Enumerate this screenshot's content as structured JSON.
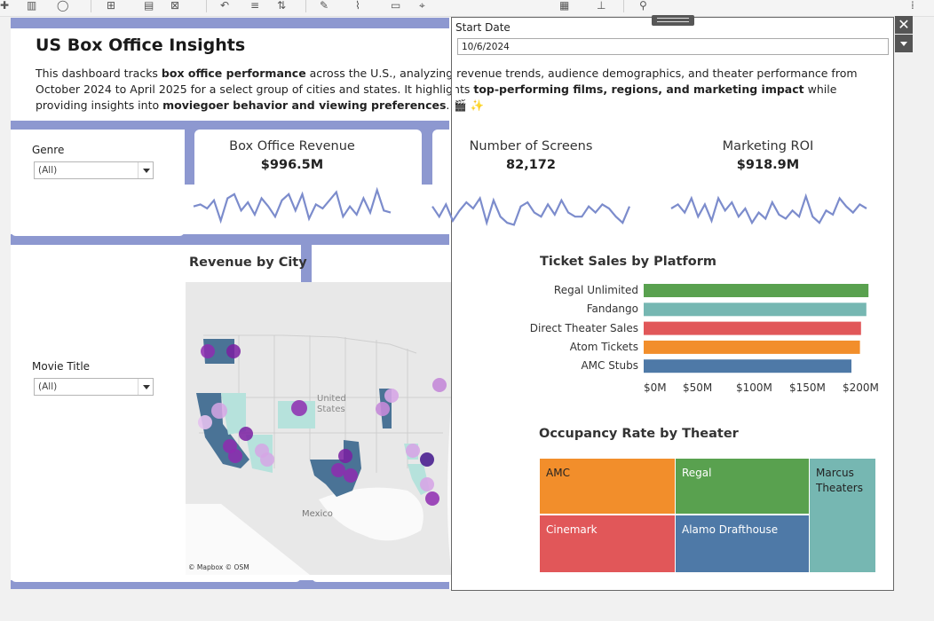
{
  "colors": {
    "accent_band": "#8d98d0",
    "sparkline": "#7c8ccc",
    "green": "#59a14f",
    "teal": "#76b7b2",
    "red": "#e15759",
    "orange": "#f28e2b",
    "blue": "#4e79a7",
    "map_state_dark": "#4a7396",
    "map_state_light": "#b6e2dc",
    "map_dot": "#7a1fa2"
  },
  "toolbar": {
    "icons": [
      "plus-icon",
      "bars-icon",
      "circle-icon",
      "add-sheet-icon",
      "trash-icon",
      "clear-icon",
      "undo-icon",
      "redo-icon",
      "sort-icon",
      "pen-icon",
      "link-icon",
      "swap-icon",
      "pin-icon",
      "chart-icon",
      "axis-icon",
      "share-icon"
    ]
  },
  "dashboard": {
    "title": "US Box Office Insights",
    "description": {
      "p1": "This dashboard tracks ",
      "b1": "box office performance",
      "p2": " across the U.S., analyzing revenue trends, audience demographics, and theater performance from October 2024 to April 2025 for a select group of cities and states. It highlights ",
      "b2": "top-performing films, regions, and marketing impact",
      "p3": " while providing insights into ",
      "b3": "moviegoer behavior and viewing preferences",
      "p4": ". 🎬 ✨"
    },
    "filters": {
      "genre": {
        "label": "Genre",
        "value": "(All)"
      },
      "movie_title": {
        "label": "Movie Title",
        "value": "(All)"
      }
    },
    "kpis": [
      {
        "title": "Box Office Revenue",
        "value": "$996.5M",
        "spark": [
          0.55,
          0.6,
          0.5,
          0.7,
          0.2,
          0.75,
          0.85,
          0.45,
          0.65,
          0.35,
          0.75,
          0.55,
          0.3,
          0.7,
          0.85,
          0.45,
          0.85,
          0.25,
          0.6,
          0.5,
          0.7,
          0.9,
          0.3,
          0.55,
          0.35,
          0.75,
          0.4,
          0.95,
          0.45,
          0.4
        ]
      },
      {
        "title": "Number of Screens",
        "value": "82,172",
        "spark": [
          0.55,
          0.3,
          0.6,
          0.2,
          0.45,
          0.65,
          0.5,
          0.75,
          0.15,
          0.7,
          0.3,
          0.15,
          0.1,
          0.55,
          0.65,
          0.4,
          0.3,
          0.6,
          0.35,
          0.7,
          0.4,
          0.3,
          0.3,
          0.55,
          0.4,
          0.6,
          0.5,
          0.3,
          0.15,
          0.55
        ]
      },
      {
        "title": "Marketing ROI",
        "value": "$918.9M",
        "spark": [
          0.5,
          0.6,
          0.4,
          0.75,
          0.3,
          0.6,
          0.2,
          0.75,
          0.45,
          0.65,
          0.3,
          0.5,
          0.15,
          0.4,
          0.25,
          0.65,
          0.35,
          0.25,
          0.45,
          0.3,
          0.8,
          0.3,
          0.15,
          0.45,
          0.35,
          0.75,
          0.55,
          0.4,
          0.6,
          0.5
        ]
      }
    ],
    "map": {
      "title": "Revenue by City",
      "credit": "© Mapbox © OSM",
      "label_us": "United\nStates",
      "label_us_1": "United",
      "label_us_2": "States",
      "label_mexico": "Mexico"
    }
  },
  "overlay": {
    "start_date": {
      "label": "Start Date",
      "value": "10/6/2024"
    },
    "close_label": "✕"
  },
  "chart_data": [
    {
      "type": "bar",
      "title": "Ticket Sales by Platform",
      "categories": [
        "Regal Unlimited",
        "Fandango",
        "Direct Theater Sales",
        "Atom Tickets",
        "AMC Stubs"
      ],
      "values": [
        211,
        209,
        204,
        203,
        195
      ],
      "xlim": [
        0,
        220
      ],
      "tick_labels": [
        "$0M",
        "$50M",
        "$100M",
        "$150M",
        "$200M"
      ],
      "ticks": [
        0,
        50,
        100,
        150,
        200
      ],
      "bar_colors": [
        "#59a14f",
        "#76b7b2",
        "#e15759",
        "#f28e2b",
        "#4e79a7"
      ]
    },
    {
      "type": "treemap",
      "title": "Occupancy Rate by Theater",
      "cells": [
        {
          "label": "AMC",
          "color": "#f28e2b",
          "text_color": "#222"
        },
        {
          "label": "Regal",
          "color": "#59a14f",
          "text_color": "#fff"
        },
        {
          "label": "Marcus\nTheaters",
          "label_1": "Marcus",
          "label_2": "Theaters",
          "color": "#76b7b2",
          "text_color": "#222"
        },
        {
          "label": "Cinemark",
          "color": "#e15759",
          "text_color": "#fff"
        },
        {
          "label": "Alamo Drafthouse",
          "color": "#4e79a7",
          "text_color": "#fff"
        }
      ]
    }
  ]
}
